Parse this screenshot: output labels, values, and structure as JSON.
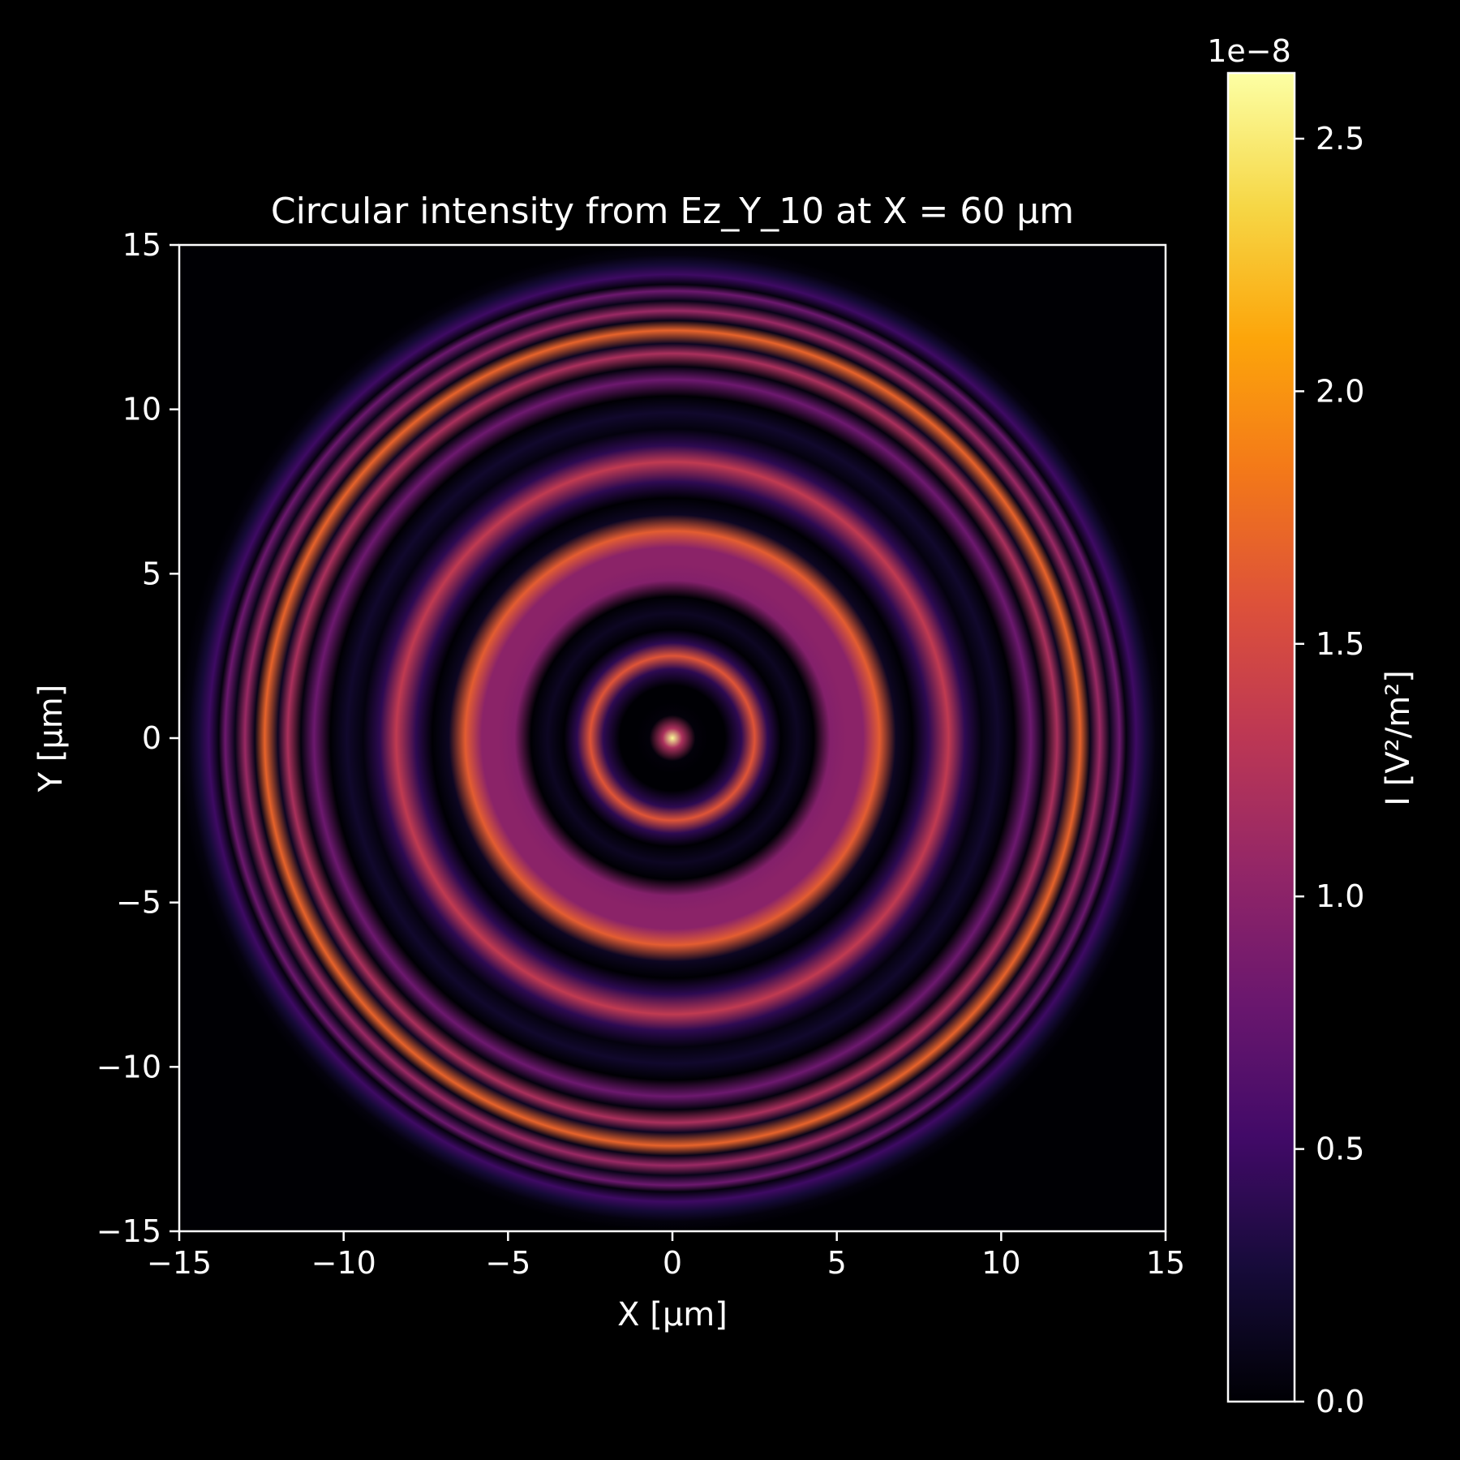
{
  "chart_data": {
    "type": "heatmap",
    "title": "Circular intensity from Ez_Y_10 at X = 60 µm",
    "xlabel": "X [µm]",
    "ylabel": "Y [µm]",
    "xlim": [
      -15,
      15
    ],
    "ylim": [
      -15,
      15
    ],
    "x_ticks": [
      -15,
      -10,
      -5,
      0,
      5,
      10,
      15
    ],
    "x_tick_labels": [
      "−15",
      "−10",
      "−5",
      "0",
      "5",
      "10",
      "15"
    ],
    "y_ticks": [
      -15,
      -10,
      -5,
      0,
      5,
      10,
      15
    ],
    "y_tick_labels": [
      "−15",
      "−10",
      "−5",
      "0",
      "5",
      "10",
      "15"
    ],
    "grid": false,
    "colormap": "inferno",
    "pattern": "concentric rings (radially symmetric)",
    "center": [
      0,
      0
    ],
    "radial_profile": {
      "r_um": [
        0.0,
        0.3,
        0.7,
        1.1,
        1.6,
        2.1,
        2.5,
        2.9,
        3.3,
        3.8,
        4.3,
        4.8,
        5.3,
        5.8,
        6.3,
        6.8,
        7.3,
        7.8,
        8.4,
        8.9,
        9.4,
        9.9,
        10.4,
        10.9,
        11.3,
        11.7,
        12.0,
        12.4,
        12.7,
        13.0,
        13.3,
        13.6,
        13.8,
        14.1,
        14.4,
        14.7,
        15.0
      ],
      "intensity": [
        2.6e-08,
        1.2e-08,
        3e-10,
        0.0,
        0.0,
        4e-09,
        1.6e-08,
        4e-09,
        0.0,
        1.5e-09,
        0.0,
        9.5e-09,
        1e-08,
        1e-08,
        1.65e-08,
        1.5e-09,
        0.0,
        4e-09,
        1.35e-08,
        4e-09,
        5e-10,
        2e-09,
        0.0,
        8e-09,
        5e-10,
        1.2e-08,
        1.5e-09,
        1.7e-08,
        1e-09,
        1.1e-08,
        1e-09,
        8e-09,
        5e-10,
        5e-09,
        2.5e-09,
        5e-10,
        0.0
      ]
    },
    "colorbar": {
      "label": "I [V²/m²]",
      "offset_text": "1e−8",
      "min": 0.0,
      "max": 2.63,
      "ticks": [
        0.0,
        0.5,
        1.0,
        1.5,
        2.0,
        2.5
      ],
      "tick_labels": [
        "0.0",
        "0.5",
        "1.0",
        "1.5",
        "2.0",
        "2.5"
      ]
    }
  }
}
